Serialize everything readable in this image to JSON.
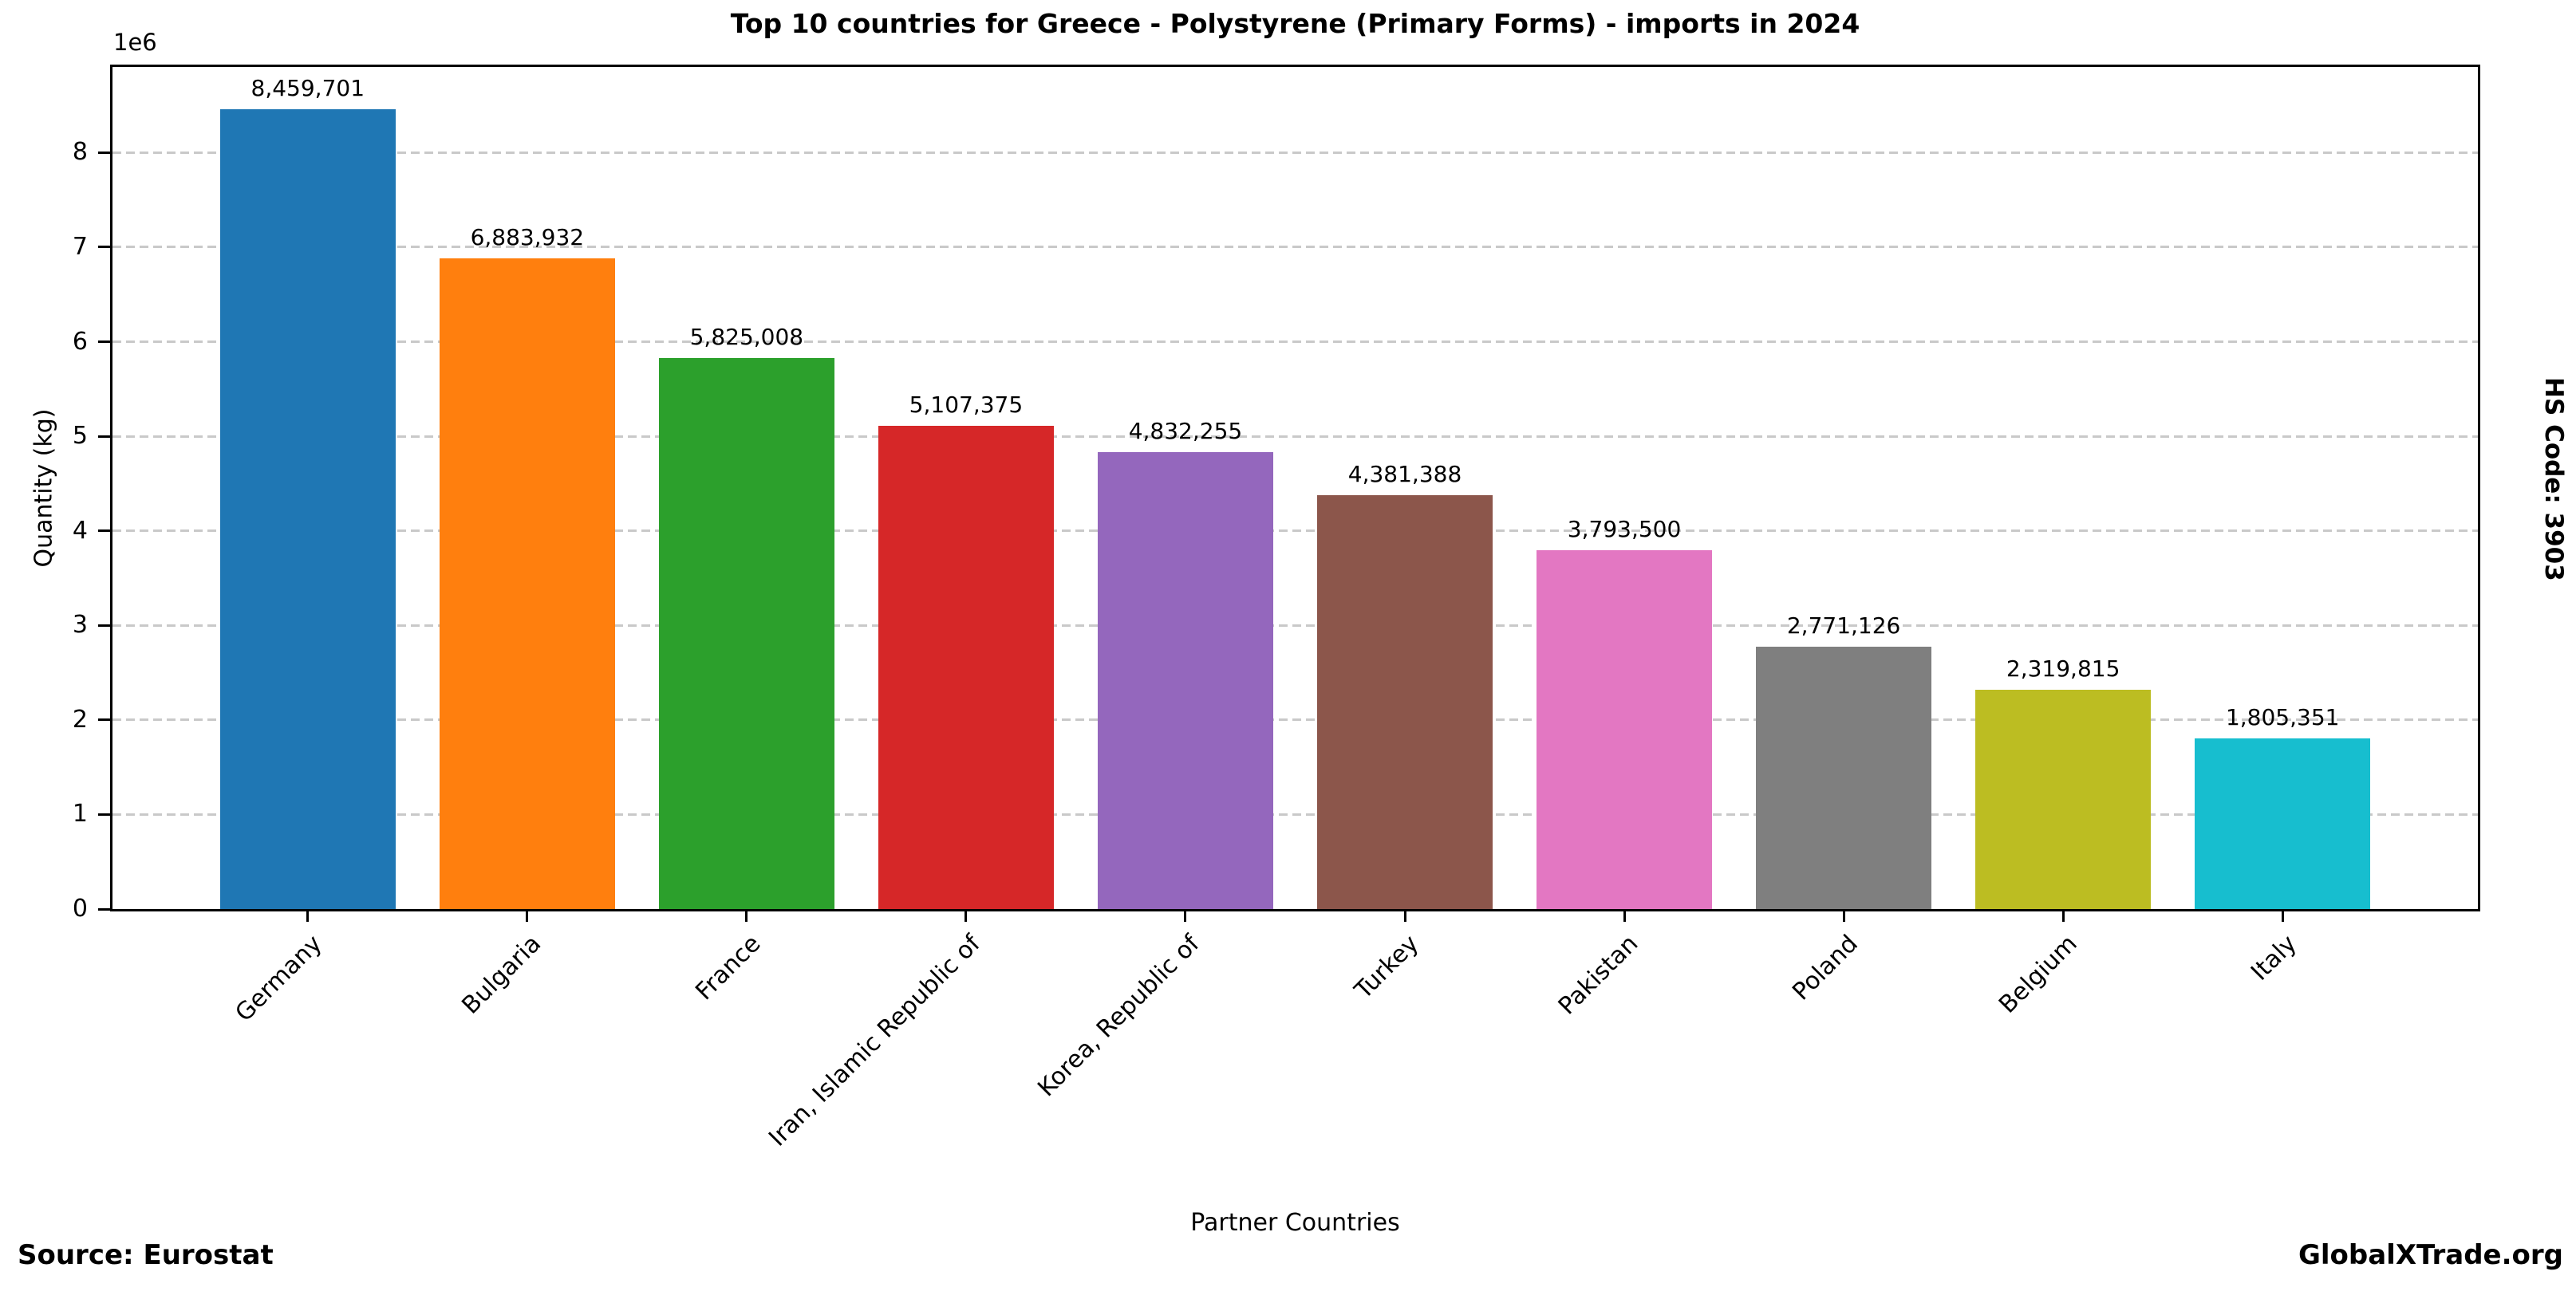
{
  "chart_data": {
    "type": "bar",
    "title": "Top 10 countries for Greece - Polystyrene (Primary Forms) - imports in 2024",
    "xlabel": "Partner Countries",
    "ylabel": "Quantity (kg)",
    "offset_text": "1e6",
    "ylim": [
      0,
      8906000
    ],
    "yticks": [
      0,
      1,
      2,
      3,
      4,
      5,
      6,
      7,
      8
    ],
    "ytick_scale": 1000000,
    "grid": true,
    "grid_style": "dashed",
    "legend": "none",
    "categories": [
      "Germany",
      "Bulgaria",
      "France",
      "Iran, Islamic Republic of",
      "Korea, Republic of",
      "Turkey",
      "Pakistan",
      "Poland",
      "Belgium",
      "Italy"
    ],
    "values": [
      8459701,
      6883932,
      5825008,
      5107375,
      4832255,
      4381388,
      3793500,
      2771126,
      2319815,
      1805351
    ],
    "value_labels": [
      "8,459,701",
      "6,883,932",
      "5,825,008",
      "5,107,375",
      "4,832,255",
      "4,381,388",
      "3,793,500",
      "2,771,126",
      "2,319,815",
      "1,805,351"
    ],
    "bar_colors": [
      "#1f77b4",
      "#ff7f0e",
      "#2ca02c",
      "#d62728",
      "#9467bd",
      "#8c564b",
      "#e377c2",
      "#7f7f7f",
      "#bcbd22",
      "#17becf"
    ]
  },
  "footer": {
    "source": "Source: Eurostat",
    "brand": "GlobalXTrade.org"
  },
  "side_note": "HS Code: 3903",
  "colors": {
    "background": "#ffffff",
    "text": "#000000",
    "gridline": "#c9c9c9",
    "spine": "#000000"
  }
}
